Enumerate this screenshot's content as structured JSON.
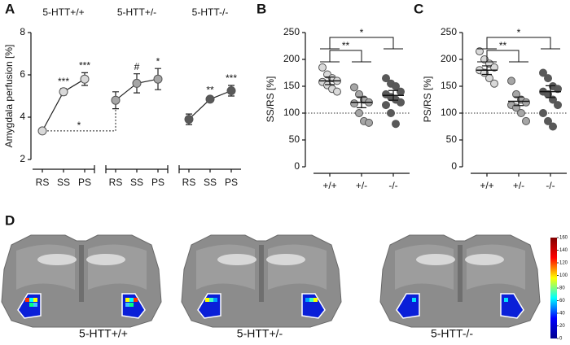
{
  "chart_data": [
    {
      "type": "line",
      "panel": "A",
      "ylabel": "Amygdala perfusion [%]",
      "categories": [
        "RS",
        "SS",
        "PS"
      ],
      "ylim": [
        2,
        8
      ],
      "yticks": [
        2,
        4,
        6,
        8
      ],
      "series": [
        {
          "name": "5-HTT+/+",
          "color": "#d9d9d9",
          "values": [
            3.35,
            5.2,
            5.8
          ],
          "errors": [
            0.1,
            0.15,
            0.3
          ],
          "point_labels": [
            null,
            "***",
            "***"
          ]
        },
        {
          "name": "5-HTT+/-",
          "color": "#a6a6a6",
          "values": [
            4.8,
            5.6,
            5.8
          ],
          "errors": [
            0.4,
            0.45,
            0.5
          ],
          "point_labels": [
            null,
            "#",
            "*"
          ]
        },
        {
          "name": "5-HTT-/-",
          "color": "#595959",
          "values": [
            3.9,
            4.85,
            5.25
          ],
          "errors": [
            0.25,
            0.1,
            0.25
          ],
          "point_labels": [
            null,
            "**",
            "***"
          ]
        }
      ],
      "comparison": "*"
    },
    {
      "type": "dotplot",
      "panel": "B",
      "ylabel": "SS/RS [%]",
      "categories": [
        "+/+",
        "+/-",
        "-/-"
      ],
      "colors": [
        "#d9d9d9",
        "#a6a6a6",
        "#595959"
      ],
      "ylim": [
        0,
        250
      ],
      "yticks": [
        0,
        50,
        100,
        150,
        200,
        250
      ],
      "refline": 100,
      "values": [
        160,
        120,
        133
      ],
      "errors": [
        7,
        10,
        9
      ],
      "points": [
        [
          185,
          172,
          165,
          160,
          158,
          152,
          145,
          140
        ],
        [
          148,
          135,
          125,
          120,
          118,
          100,
          85,
          82
        ],
        [
          165,
          155,
          150,
          140,
          135,
          130,
          125,
          120,
          115,
          100,
          80
        ]
      ],
      "annotations": [
        {
          "text": "**",
          "between": [
            0,
            1
          ]
        },
        {
          "text": "*",
          "between": [
            0,
            2
          ]
        }
      ]
    },
    {
      "type": "dotplot",
      "panel": "C",
      "ylabel": "PS/RS [%]",
      "categories": [
        "+/+",
        "+/-",
        "-/-"
      ],
      "colors": [
        "#d9d9d9",
        "#a6a6a6",
        "#595959"
      ],
      "ylim": [
        0,
        250
      ],
      "yticks": [
        0,
        50,
        100,
        150,
        200,
        250
      ],
      "refline": 100,
      "values": [
        180,
        122,
        140
      ],
      "errors": [
        8,
        8,
        11
      ],
      "points": [
        [
          215,
          200,
          192,
          185,
          180,
          175,
          165,
          155
        ],
        [
          160,
          135,
          125,
          120,
          115,
          110,
          100,
          85
        ],
        [
          175,
          165,
          150,
          145,
          140,
          135,
          125,
          115,
          100,
          85,
          75
        ]
      ],
      "annotations": [
        {
          "text": "**",
          "between": [
            0,
            1
          ]
        },
        {
          "text": "*",
          "between": [
            0,
            2
          ]
        }
      ]
    },
    {
      "type": "image",
      "panel": "D",
      "labels": [
        "5-HTT+/+",
        "5-HTT+/-",
        "5-HTT-/-"
      ],
      "colorbar": {
        "lim": [
          0,
          160
        ],
        "ticks": [
          0,
          20,
          40,
          60,
          80,
          100,
          120,
          140,
          160
        ],
        "colors": [
          "#00008f",
          "#0000ff",
          "#00ffff",
          "#ffff00",
          "#ff0000",
          "#800000"
        ]
      }
    }
  ]
}
